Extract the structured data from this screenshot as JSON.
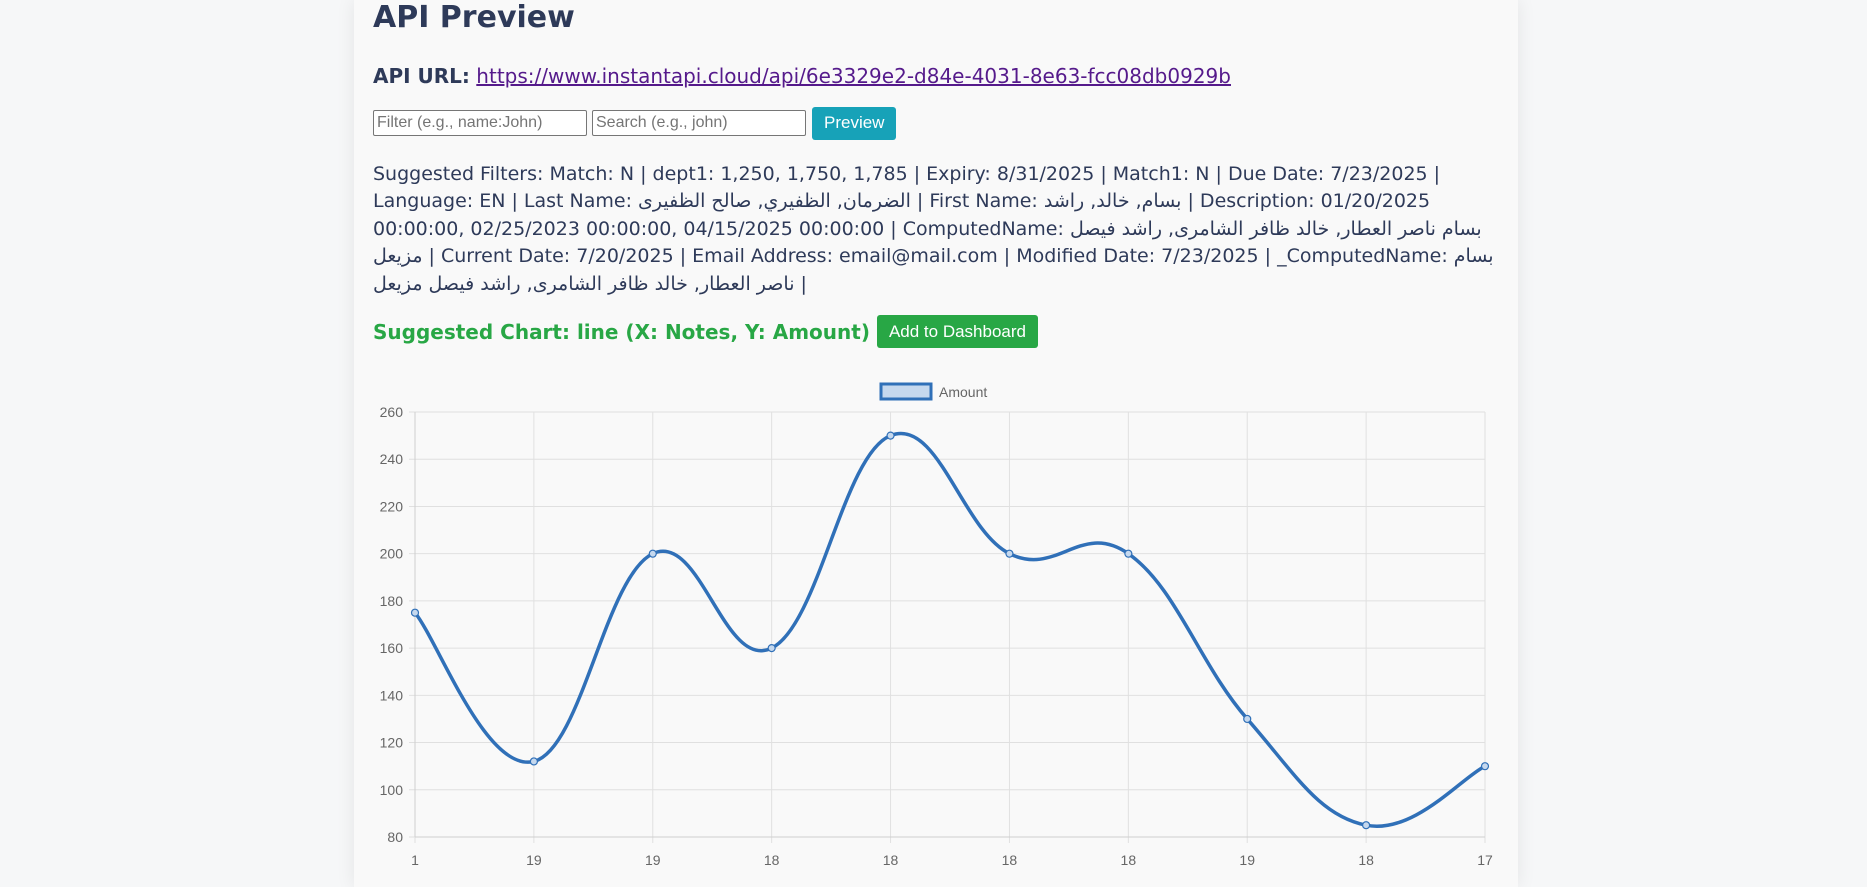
{
  "page": {
    "title": "API Preview",
    "api_url_label": "API URL:",
    "api_url": "https://www.instantapi.cloud/api/6e3329e2-d84e-4031-8e63-fcc08db0929b"
  },
  "controls": {
    "filter_placeholder": "Filter (e.g., name:John)",
    "search_placeholder": "Search (e.g., john)",
    "preview_label": "Preview"
  },
  "suggested_filters": "Suggested Filters: Match: N | dept1: 1,250, 1,750, 1,785 | Expiry: 8/31/2025 | Match1: N | Due Date: 7/23/2025 | Language: EN | Last Name: الضرمان, الظفيري, صالح الظفيرى | First Name: بسام, خالد, راشد | Description: 01/20/2025 00:00:00, 02/25/2023 00:00:00, 04/15/2025 00:00:00 | ComputedName: بسام ناصر العطار, خالد ظافر الشامرى, راشد فيصل مزيعل | Current Date: 7/20/2025 | Email Address: email@mail.com | Modified Date: 7/23/2025 | _ComputedName: بسام ناصر العطار, خالد ظافر الشامرى, راشد فيصل مزيعل |",
  "suggested_chart": {
    "text": "Suggested Chart: line (X: Notes, Y: Amount)",
    "add_button_label": "Add to Dashboard"
  },
  "chart_data": {
    "type": "line",
    "categories": [
      "1",
      "19",
      "19",
      "18",
      "18",
      "18",
      "18",
      "19",
      "18",
      "17"
    ],
    "series": [
      {
        "name": "Amount",
        "values": [
          175,
          112,
          200,
          160,
          250,
          200,
          200,
          130,
          85,
          110
        ]
      }
    ],
    "yticks": [
      "80",
      "100",
      "120",
      "140",
      "160",
      "180",
      "200",
      "220",
      "240",
      "260"
    ],
    "ylim": [
      80,
      260
    ],
    "grid": true,
    "legend_position": "top-center",
    "colors": {
      "line": "#3070b8",
      "fill": "#c5d8ee",
      "grid": "#e0e0e0"
    }
  }
}
